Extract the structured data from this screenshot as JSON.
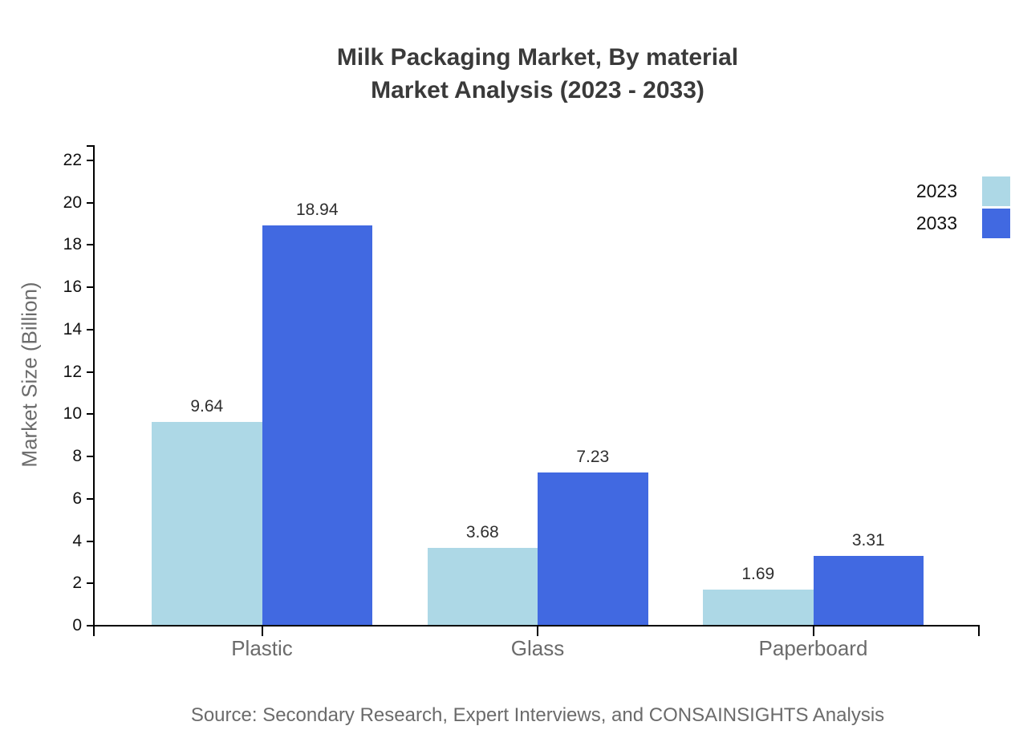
{
  "title": {
    "line1": "Milk Packaging Market, By material",
    "line2": "Market Analysis (2023 - 2033)"
  },
  "chart_data": {
    "type": "bar",
    "categories": [
      "Plastic",
      "Glass",
      "Paperboard"
    ],
    "series": [
      {
        "name": "2023",
        "color": "#ADD8E6",
        "values": [
          9.64,
          3.68,
          1.69
        ]
      },
      {
        "name": "2033",
        "color": "#4169E1",
        "values": [
          18.94,
          7.23,
          3.31
        ]
      }
    ],
    "title": "Milk Packaging Market, By material Market Analysis (2023 - 2033)",
    "xlabel": "",
    "ylabel": "Market Size (Billion)",
    "ylim": [
      0,
      22.7
    ],
    "yticks": [
      0,
      2,
      4,
      6,
      8,
      10,
      12,
      14,
      16,
      18,
      20,
      22
    ],
    "grid": false,
    "legend_position": "top-right",
    "value_labels": true
  },
  "source": "Source: Secondary Research, Expert Interviews, and CONSAINSIGHTS Analysis",
  "colors": {
    "series_2023": "#ADD8E6",
    "series_2033": "#4169E1",
    "title_text": "#3a3a3a",
    "axis": "#000000",
    "muted_text": "#6b6b6b",
    "value_text": "#2f2f2f"
  }
}
